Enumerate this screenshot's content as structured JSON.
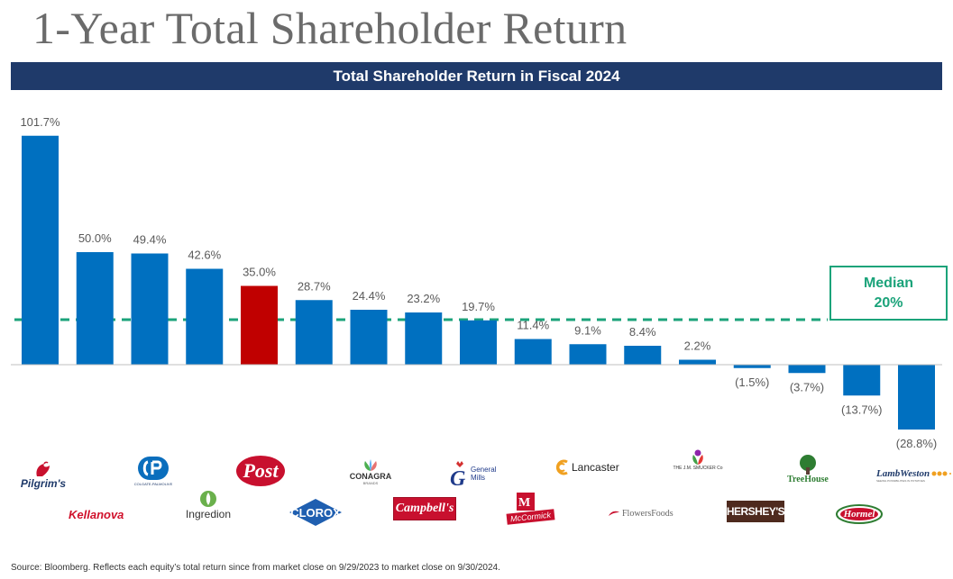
{
  "page": {
    "title": "1-Year Total Shareholder Return",
    "source": "Source: Bloomberg. Reflects each equity’s total return since from market close on 9/29/2023 to market close on 9/30/2024."
  },
  "chart_data": {
    "type": "bar",
    "title": "Total Shareholder Return in Fiscal 2024",
    "values": [
      101.7,
      50.0,
      49.4,
      42.6,
      35.0,
      28.7,
      24.4,
      23.2,
      19.7,
      11.4,
      9.1,
      8.4,
      2.2,
      -1.5,
      -3.7,
      -13.7,
      -28.8
    ],
    "labels": [
      "101.7%",
      "50.0%",
      "49.4%",
      "42.6%",
      "35.0%",
      "28.7%",
      "24.4%",
      "23.2%",
      "19.7%",
      "11.4%",
      "9.1%",
      "8.4%",
      "2.2%",
      "(1.5%)",
      "(3.7%)",
      "(13.7%)",
      "(28.8%)"
    ],
    "highlight_index": 4,
    "colors": {
      "bar": "#0070c0",
      "highlight": "#c00000",
      "median": "#1ba37a",
      "label": "#595959"
    },
    "median": {
      "value": 20,
      "label": "Median",
      "value_label": "20%"
    }
  },
  "logos": {
    "pilgrims": "Pilgrim's",
    "colgate": "COLGATE-PALMOLIVE",
    "post": "Post",
    "conagra": "CONAGRA",
    "conagra_sub": "BRANDS",
    "general_mills_1": "General",
    "general_mills_2": "Mills",
    "lancaster": "Lancaster",
    "smucker": "THE J.M. SMUCKER Co",
    "treehouse": "TreeHouse",
    "lambweston": "LambWeston",
    "lambweston_sub": "SEEING POSSIBILITIES IN POTATOES",
    "kellanova": "Kellanova",
    "ingredion": "Ingredion",
    "clorox": "CLOROX",
    "campbells": "Campbell's",
    "mccormick": "McCormick",
    "flowers": "FlowersFoods",
    "hersheys": "HERSHEY'S",
    "hormel": "Hormel"
  }
}
